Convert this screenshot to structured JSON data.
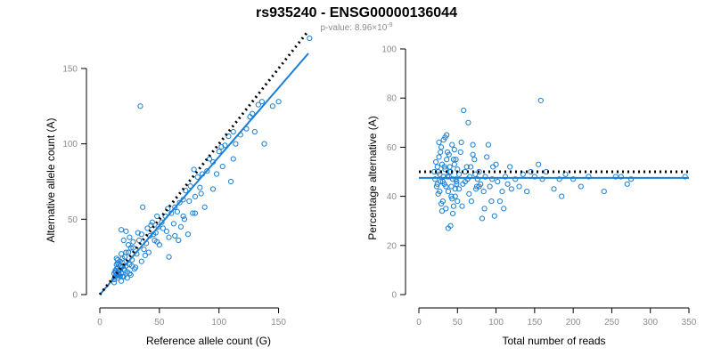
{
  "header": {
    "title": "rs935240 - ENSG00000136044",
    "subtitle_prefix": "p-value: 8.96×10",
    "subtitle_exponent": "-9"
  },
  "colors": {
    "points": "#1a7fd6",
    "regression_line": "#1a7fd6",
    "reference_line": "#000000",
    "tick_labels": "#8c8c8c"
  },
  "chart_data": [
    {
      "type": "scatter",
      "xlabel": "Reference allele count (G)",
      "ylabel": "Alternative allele count (A)",
      "xlim": [
        0,
        175
      ],
      "ylim": [
        0,
        160
      ],
      "xticks": [
        0,
        50,
        100,
        150
      ],
      "yticks": [
        0,
        50,
        100,
        150
      ],
      "grid": false,
      "lines": [
        {
          "kind": "regression",
          "style": "solid",
          "color": "#1a7fd6",
          "x": [
            0,
            175
          ],
          "y": [
            0,
            160
          ]
        },
        {
          "kind": "reference",
          "style": "dotted",
          "color": "#000000",
          "x": [
            0,
            175
          ],
          "y": [
            0,
            175
          ]
        }
      ],
      "points": [
        [
          12,
          8
        ],
        [
          12,
          10
        ],
        [
          13,
          12
        ],
        [
          13,
          15
        ],
        [
          14,
          17
        ],
        [
          14,
          20
        ],
        [
          15,
          18
        ],
        [
          15,
          11
        ],
        [
          16,
          13
        ],
        [
          16,
          16
        ],
        [
          17,
          19
        ],
        [
          17,
          22
        ],
        [
          18,
          9
        ],
        [
          18,
          14
        ],
        [
          19,
          21
        ],
        [
          20,
          12
        ],
        [
          20,
          17
        ],
        [
          21,
          25
        ],
        [
          22,
          19
        ],
        [
          23,
          15
        ],
        [
          24,
          28
        ],
        [
          25,
          20
        ],
        [
          26,
          13
        ],
        [
          27,
          23
        ],
        [
          28,
          31
        ],
        [
          30,
          18
        ],
        [
          31,
          27
        ],
        [
          32,
          41
        ],
        [
          33,
          36
        ],
        [
          34,
          125
        ],
        [
          35,
          22
        ],
        [
          36,
          58
        ],
        [
          37,
          30
        ],
        [
          38,
          26
        ],
        [
          39,
          34
        ],
        [
          40,
          44
        ],
        [
          41,
          28
        ],
        [
          42,
          39
        ],
        [
          43,
          46
        ],
        [
          44,
          48
        ],
        [
          45,
          40
        ],
        [
          46,
          36
        ],
        [
          47,
          41
        ],
        [
          48,
          52
        ],
        [
          49,
          45
        ],
        [
          50,
          33
        ],
        [
          52,
          48
        ],
        [
          53,
          44
        ],
        [
          55,
          52
        ],
        [
          56,
          42
        ],
        [
          57,
          57
        ],
        [
          58,
          38
        ],
        [
          60,
          54
        ],
        [
          62,
          47
        ],
        [
          63,
          58
        ],
        [
          65,
          55
        ],
        [
          66,
          36
        ],
        [
          67,
          61
        ],
        [
          68,
          45
        ],
        [
          70,
          63
        ],
        [
          71,
          50
        ],
        [
          72,
          69
        ],
        [
          74,
          40
        ],
        [
          75,
          62
        ],
        [
          76,
          72
        ],
        [
          78,
          54
        ],
        [
          79,
          83
        ],
        [
          80,
          65
        ],
        [
          82,
          78
        ],
        [
          84,
          71
        ],
        [
          86,
          80
        ],
        [
          88,
          58
        ],
        [
          90,
          82
        ],
        [
          92,
          90
        ],
        [
          95,
          88
        ],
        [
          98,
          80
        ],
        [
          100,
          95
        ],
        [
          102,
          98
        ],
        [
          105,
          99
        ],
        [
          108,
          105
        ],
        [
          110,
          75
        ],
        [
          112,
          108
        ],
        [
          114,
          100
        ],
        [
          118,
          106
        ],
        [
          123,
          110
        ],
        [
          126,
          118
        ],
        [
          128,
          120
        ],
        [
          130,
          108
        ],
        [
          133,
          126
        ],
        [
          136,
          128
        ],
        [
          138,
          100
        ],
        [
          145,
          125
        ],
        [
          150,
          128
        ],
        [
          176,
          170
        ],
        [
          15,
          23
        ],
        [
          18,
          43
        ],
        [
          20,
          36
        ],
        [
          22,
          42
        ],
        [
          25,
          38
        ],
        [
          26,
          31
        ],
        [
          28,
          35
        ],
        [
          35,
          40
        ],
        [
          48,
          35
        ],
        [
          58,
          25
        ],
        [
          63,
          39
        ],
        [
          70,
          52
        ],
        [
          80,
          54
        ],
        [
          85,
          67
        ],
        [
          95,
          70
        ],
        [
          103,
          85
        ],
        [
          112,
          90
        ],
        [
          16,
          14
        ],
        [
          19,
          12
        ],
        [
          21,
          16
        ],
        [
          23,
          11
        ],
        [
          25,
          14
        ],
        [
          27,
          19
        ],
        [
          29,
          17
        ],
        [
          14,
          13
        ],
        [
          13,
          16
        ],
        [
          15,
          21
        ],
        [
          17,
          12
        ],
        [
          19,
          24
        ],
        [
          22,
          28
        ],
        [
          24,
          33
        ],
        [
          12,
          14
        ],
        [
          14,
          24
        ],
        [
          16,
          20
        ],
        [
          18,
          27
        ]
      ]
    },
    {
      "type": "scatter",
      "xlabel": "Total number of reads",
      "ylabel": "Percentage alternative (A)",
      "xlim": [
        0,
        350
      ],
      "ylim": [
        0,
        100
      ],
      "xticks": [
        0,
        50,
        100,
        150,
        200,
        250,
        300,
        350
      ],
      "yticks": [
        0,
        20,
        40,
        60,
        80,
        100
      ],
      "grid": false,
      "lines": [
        {
          "kind": "regression",
          "style": "solid",
          "color": "#1a7fd6",
          "x": [
            0,
            350
          ],
          "y": [
            47.5,
            47.5
          ]
        },
        {
          "kind": "reference",
          "style": "dotted",
          "color": "#000000",
          "x": [
            0,
            350
          ],
          "y": [
            50,
            50
          ]
        }
      ],
      "points": [
        [
          20,
          50
        ],
        [
          21,
          47
        ],
        [
          22,
          54
        ],
        [
          23,
          44
        ],
        [
          24,
          52
        ],
        [
          25,
          41
        ],
        [
          26,
          56
        ],
        [
          27,
          49
        ],
        [
          28,
          46
        ],
        [
          29,
          60
        ],
        [
          30,
          53
        ],
        [
          31,
          38
        ],
        [
          32,
          63
        ],
        [
          33,
          45
        ],
        [
          34,
          51
        ],
        [
          35,
          35
        ],
        [
          36,
          65
        ],
        [
          37,
          48
        ],
        [
          38,
          42
        ],
        [
          39,
          57
        ],
        [
          40,
          50
        ],
        [
          41,
          28
        ],
        [
          42,
          44
        ],
        [
          43,
          61
        ],
        [
          44,
          47
        ],
        [
          45,
          36
        ],
        [
          46,
          53
        ],
        [
          47,
          40
        ],
        [
          48,
          55
        ],
        [
          49,
          45
        ],
        [
          50,
          51
        ],
        [
          52,
          43
        ],
        [
          54,
          58
        ],
        [
          56,
          36
        ],
        [
          58,
          75
        ],
        [
          60,
          46
        ],
        [
          62,
          52
        ],
        [
          64,
          70
        ],
        [
          66,
          48
        ],
        [
          68,
          38
        ],
        [
          70,
          61
        ],
        [
          72,
          55
        ],
        [
          74,
          43
        ],
        [
          76,
          47
        ],
        [
          78,
          50
        ],
        [
          80,
          45
        ],
        [
          82,
          31
        ],
        [
          84,
          42
        ],
        [
          86,
          48
        ],
        [
          88,
          56
        ],
        [
          90,
          61
        ],
        [
          92,
          44
        ],
        [
          94,
          38
        ],
        [
          96,
          52
        ],
        [
          98,
          32
        ],
        [
          100,
          53
        ],
        [
          102,
          46
        ],
        [
          105,
          38
        ],
        [
          108,
          42
        ],
        [
          110,
          35
        ],
        [
          112,
          48
        ],
        [
          115,
          45
        ],
        [
          118,
          52
        ],
        [
          120,
          43
        ],
        [
          125,
          47
        ],
        [
          130,
          44
        ],
        [
          135,
          49
        ],
        [
          140,
          42
        ],
        [
          145,
          50
        ],
        [
          150,
          48
        ],
        [
          155,
          53
        ],
        [
          158,
          79
        ],
        [
          160,
          47
        ],
        [
          165,
          50
        ],
        [
          175,
          43
        ],
        [
          182,
          47
        ],
        [
          185,
          40
        ],
        [
          190,
          49
        ],
        [
          200,
          47
        ],
        [
          210,
          44
        ],
        [
          220,
          48
        ],
        [
          240,
          42
        ],
        [
          255,
          48
        ],
        [
          262,
          48
        ],
        [
          270,
          45
        ],
        [
          275,
          47
        ],
        [
          345,
          48
        ],
        [
          24,
          45
        ],
        [
          26,
          62
        ],
        [
          28,
          58
        ],
        [
          30,
          34
        ],
        [
          32,
          48
        ],
        [
          34,
          64
        ],
        [
          36,
          55
        ],
        [
          38,
          27
        ],
        [
          40,
          52
        ],
        [
          42,
          40
        ],
        [
          44,
          33
        ],
        [
          46,
          59
        ],
        [
          48,
          47
        ],
        [
          50,
          38
        ],
        [
          55,
          62
        ],
        [
          60,
          50
        ],
        [
          65,
          41
        ],
        [
          70,
          57
        ],
        [
          75,
          44
        ],
        [
          85,
          35
        ],
        [
          25,
          50
        ],
        [
          27,
          42
        ],
        [
          29,
          37
        ],
        [
          31,
          46
        ],
        [
          33,
          52
        ],
        [
          35,
          44
        ],
        [
          37,
          58
        ],
        [
          39,
          48
        ],
        [
          41,
          50
        ],
        [
          43,
          39
        ],
        [
          45,
          55
        ],
        [
          47,
          43
        ],
        [
          49,
          46
        ],
        [
          52,
          49
        ],
        [
          57,
          45
        ],
        [
          63,
          47
        ],
        [
          67,
          52
        ],
        [
          73,
          49
        ],
        [
          78,
          44
        ],
        [
          95,
          47
        ]
      ]
    }
  ]
}
